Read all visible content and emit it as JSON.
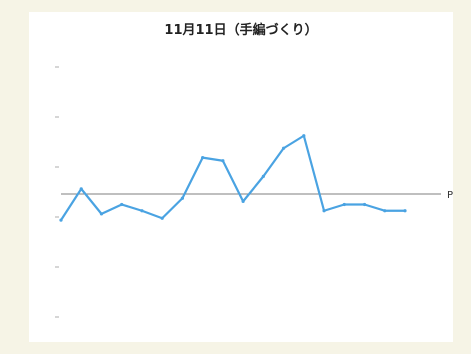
{
  "chart_data": {
    "type": "line",
    "title": "11月11日（手編づくり）",
    "xlabel": "",
    "ylabel": "",
    "ylim": [
      -2,
      2
    ],
    "grid": false,
    "legend": "none",
    "reference_line": {
      "y": 0,
      "label": "P"
    },
    "colors": {
      "line": "#4aa3e2",
      "reference": "#555555",
      "annotation_black": "#222222",
      "annotation_red": "#e02020"
    },
    "x": [
      "",
      "",
      "",
      "",
      "",
      "",
      "",
      "",
      "",
      "",
      "",
      "",
      "",
      "",
      "",
      "",
      "",
      ""
    ],
    "series": [
      {
        "values": [
          -0.45,
          0.05,
          -0.35,
          -0.2,
          -0.3,
          -0.42,
          -0.1,
          0.55,
          0.5,
          -0.15,
          0.25,
          0.7,
          0.9,
          -0.3,
          -0.2,
          -0.2,
          -0.3,
          -0.3
        ]
      }
    ],
    "annotations": [
      {
        "text": "",
        "color": "black",
        "x_index": 0,
        "dir": "down"
      },
      {
        "text": "",
        "color": "black",
        "x_index": 1,
        "dir": "up"
      },
      {
        "text": "",
        "color": "black",
        "x_index": 2,
        "dir": "up"
      },
      {
        "text": "",
        "color": "black",
        "x_index": 3,
        "dir": "up"
      },
      {
        "text": "",
        "color": "black",
        "x_index": 5,
        "dir": "up"
      },
      {
        "text": "",
        "color": "black",
        "x_index": 6,
        "dir": "down"
      },
      {
        "text": "",
        "color": "red",
        "x_index": 7,
        "dir": "up"
      },
      {
        "text": "",
        "color": "red",
        "x_index": 7,
        "dir": "down"
      },
      {
        "text": "",
        "color": "black",
        "x_index": 9,
        "dir": "down"
      },
      {
        "text": "",
        "color": "red",
        "x_index": 10,
        "dir": "up"
      },
      {
        "text": "",
        "color": "red",
        "x_index": 11,
        "dir": "down"
      },
      {
        "text": "",
        "color": "red",
        "x_index": 12,
        "dir": "down"
      },
      {
        "text": "",
        "color": "black",
        "x_index": 13,
        "dir": "down"
      },
      {
        "text": "",
        "color": "black",
        "x_index": 15,
        "dir": "down"
      },
      {
        "text": "",
        "color": "black",
        "x_index": 16,
        "dir": "down"
      }
    ]
  }
}
